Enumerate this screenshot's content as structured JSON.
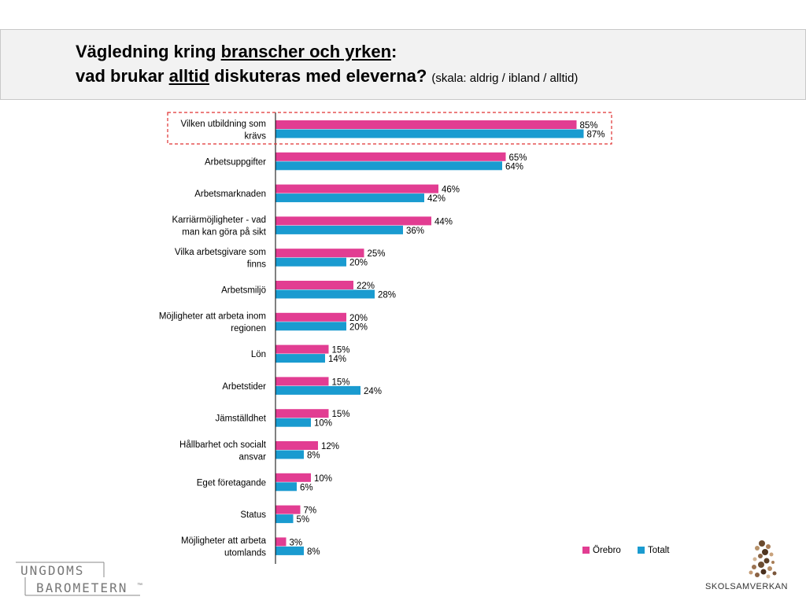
{
  "header": {
    "line1_part1": "Vägledning kring ",
    "line1_underlined": "branscher och yrken",
    "line1_colon": ":",
    "line2_part1": "vad brukar ",
    "line2_underlined": "alltid",
    "line2_part2": " diskuteras med eleverna? ",
    "line2_scale": "(skala: aldrig / ibland / alltid)"
  },
  "colors": {
    "orebro": "#e23d92",
    "totalt": "#1a9bd0",
    "highlight_box": "#e03030",
    "axis": "#000000"
  },
  "chart_data": {
    "type": "bar",
    "orientation": "horizontal",
    "title": "",
    "xlim": [
      0,
      100
    ],
    "categories": [
      [
        "Vilken utbildning som",
        "krävs"
      ],
      [
        "Arbetsuppgifter"
      ],
      [
        "Arbetsmarknaden"
      ],
      [
        "Karriärmöjligheter - vad",
        "man kan göra på sikt"
      ],
      [
        "Vilka arbetsgivare som",
        "finns"
      ],
      [
        "Arbetsmiljö"
      ],
      [
        "Möjligheter att arbeta inom",
        "regionen"
      ],
      [
        "Lön"
      ],
      [
        "Arbetstider"
      ],
      [
        "Jämställdhet"
      ],
      [
        "Hållbarhet och socialt",
        "ansvar"
      ],
      [
        "Eget företagande"
      ],
      [
        "Status"
      ],
      [
        "Möjligheter att arbeta",
        "utomlands"
      ]
    ],
    "series": [
      {
        "name": "Örebro",
        "values": [
          85,
          65,
          46,
          44,
          25,
          22,
          20,
          15,
          15,
          15,
          12,
          10,
          7,
          3
        ]
      },
      {
        "name": "Totalt",
        "values": [
          87,
          64,
          42,
          36,
          20,
          28,
          20,
          14,
          24,
          10,
          8,
          6,
          5,
          8
        ]
      }
    ],
    "value_suffix": "%",
    "highlighted_category_index": 0,
    "legend_position": "bottom-right"
  },
  "logos": {
    "left_line1": "UNGDOMS",
    "left_line2": "BAROMETERN",
    "left_tm": "™",
    "right_text": "SKOLSAMVERKAN"
  }
}
